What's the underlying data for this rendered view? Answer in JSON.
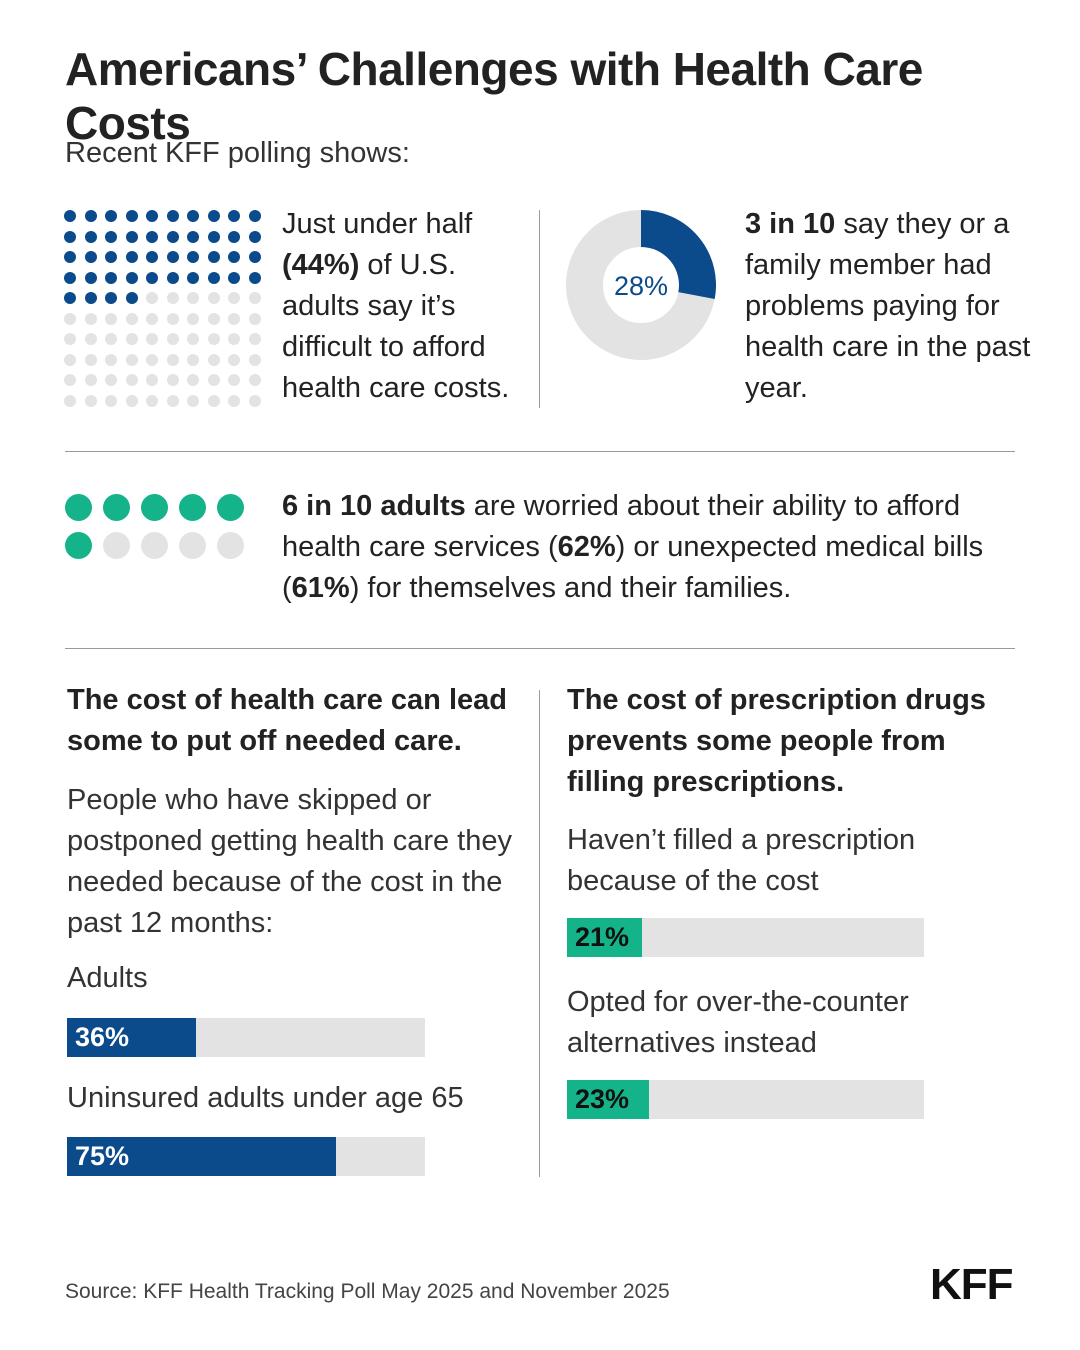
{
  "title": "Americans’ Challenges with Health Care Costs",
  "intro": "Recent KFF polling shows:",
  "colors": {
    "blue": "#0b4a8b",
    "green": "#14b38a",
    "gray": "#e3e3e3",
    "text": "#222222"
  },
  "stat1": {
    "pre": "Just under half ",
    "bold": "(44%)",
    "post": " of U.S. adults say it’s difficult to afford health care costs."
  },
  "stat2": {
    "bold": "3 in 10",
    "post": " say they or a family member had problems paying for health care in the past year."
  },
  "stat3": {
    "bold1": "6 in 10 adults",
    "mid1": " are worried about their ability to afford health care services (",
    "bold2": "62%",
    "mid2": ") or unexpected medical bills (",
    "bold3": "61%",
    "post": ") for themselves and their families."
  },
  "left": {
    "heading": "The cost of health care can lead some to put off needed care.",
    "desc": "People who have skipped or postponed getting health care they needed because of the cost in the past 12 months:"
  },
  "right": {
    "heading": "The cost of prescription drugs prevents some people from filling prescriptions."
  },
  "source": "Source: KFF Health Tracking Poll May 2025 and November 2025",
  "logo": "KFF",
  "chart_data": [
    {
      "type": "waffle",
      "value": 44,
      "total": 100,
      "rows": 10,
      "cols": 10,
      "fill_color": "#0b4a8b"
    },
    {
      "type": "pie",
      "variant": "donut",
      "value": 28,
      "label": "28%",
      "fill_color": "#0b4a8b"
    },
    {
      "type": "waffle",
      "value": 6,
      "total": 10,
      "rows": 2,
      "cols": 5,
      "fill_color": "#14b38a"
    },
    {
      "type": "bar",
      "orientation": "horizontal",
      "categories": [
        "Adults",
        "Uninsured adults under age 65"
      ],
      "values": [
        36,
        75
      ],
      "value_labels": [
        "36%",
        "75%"
      ],
      "xlim": [
        0,
        100
      ],
      "color": "#0b4a8b"
    },
    {
      "type": "bar",
      "orientation": "horizontal",
      "categories": [
        "Haven’t filled a prescription because of the cost",
        "Opted for over-the-counter alternatives instead"
      ],
      "values": [
        21,
        23
      ],
      "value_labels": [
        "21%",
        "23%"
      ],
      "xlim": [
        0,
        100
      ],
      "color": "#14b38a"
    }
  ]
}
